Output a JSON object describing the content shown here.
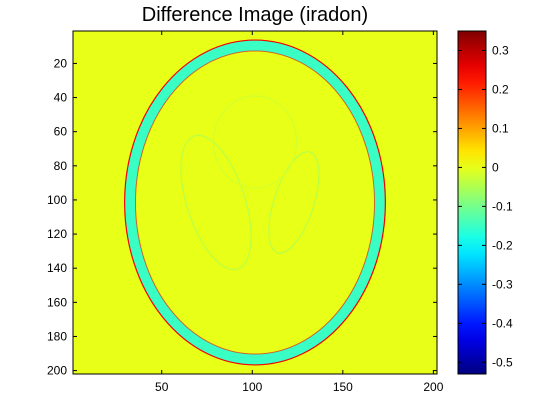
{
  "chart_data": {
    "type": "heatmap",
    "title": "Difference Image (iradon)",
    "xlabel": "",
    "ylabel": "",
    "xlim": [
      1,
      202
    ],
    "ylim": [
      1,
      202
    ],
    "x_ticks": [
      50,
      100,
      150,
      200
    ],
    "x_tick_labels": [
      "50",
      "100",
      "150",
      "200"
    ],
    "y_ticks": [
      20,
      40,
      60,
      80,
      100,
      120,
      140,
      160,
      180,
      200
    ],
    "y_tick_labels": [
      "20",
      "40",
      "60",
      "80",
      "100",
      "120",
      "140",
      "160",
      "180",
      "200"
    ],
    "colorbar": {
      "colormap": "jet",
      "range": [
        -0.53,
        0.35
      ],
      "ticks": [
        0.3,
        0.2,
        0.1,
        0,
        -0.1,
        -0.2,
        -0.3,
        -0.4,
        -0.5
      ],
      "tick_labels": [
        "0.3",
        "0.2",
        "0.1",
        "0",
        "-0.1",
        "-0.2",
        "-0.3",
        "-0.4",
        "-0.5"
      ]
    },
    "background_value": 0,
    "features": [
      {
        "shape": "ellipse",
        "role": "outer-ring",
        "cx": 101.5,
        "cy": 101.5,
        "rx": 69,
        "ry": 92,
        "width": 6,
        "value": -0.15,
        "edge_value": 0.25
      },
      {
        "shape": "ellipse",
        "role": "left-ellipse",
        "cx": 80,
        "cy": 101.5,
        "rx": 16,
        "ry": 41,
        "angle": -18,
        "value": -0.04
      },
      {
        "shape": "ellipse",
        "role": "right-ellipse",
        "cx": 123,
        "cy": 101.5,
        "rx": 11,
        "ry": 31,
        "angle": 18,
        "value": -0.04
      },
      {
        "shape": "ellipse",
        "role": "top-ellipse",
        "cx": 101.5,
        "cy": 66,
        "rx": 23,
        "ry": 27,
        "value": -0.02
      }
    ]
  }
}
